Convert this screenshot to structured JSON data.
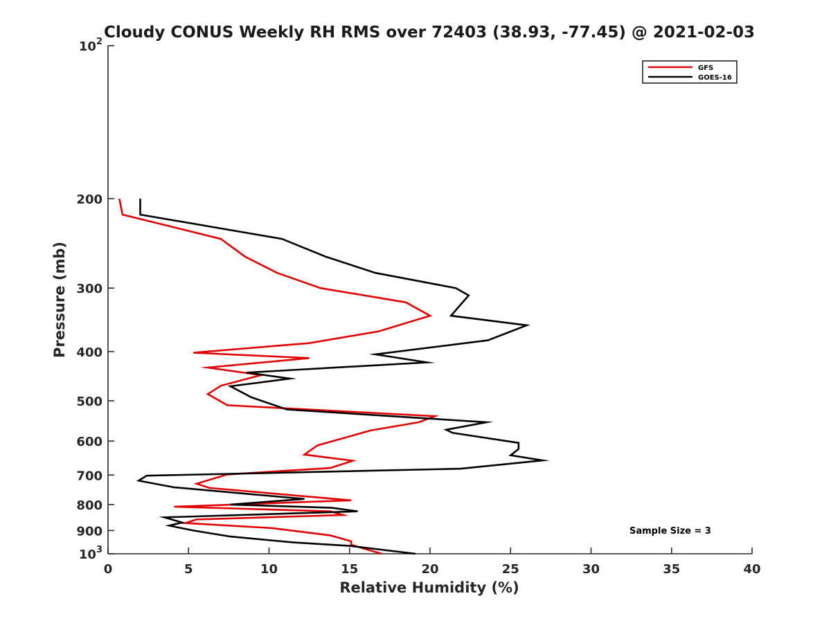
{
  "chart_data": {
    "type": "line",
    "title": "Cloudy CONUS Weekly RH RMS over 72403 (38.93, -77.45) @ 2021-02-03",
    "xlabel": "Relative Humidity (%)",
    "ylabel": "Pressure (mb)",
    "xlim": [
      0,
      40
    ],
    "ylim": [
      100,
      1000
    ],
    "y_scale": "log",
    "y_reversed": true,
    "x_ticks": [
      0,
      5,
      10,
      15,
      20,
      25,
      30,
      35,
      40
    ],
    "y_ticks": [
      {
        "value": 100,
        "base": "10",
        "exp": "2"
      },
      {
        "value": 200,
        "label": "200"
      },
      {
        "value": 300,
        "label": "300"
      },
      {
        "value": 400,
        "label": "400"
      },
      {
        "value": 500,
        "label": "500"
      },
      {
        "value": 600,
        "label": "600"
      },
      {
        "value": 700,
        "label": "700"
      },
      {
        "value": 800,
        "label": "800"
      },
      {
        "value": 900,
        "label": "900"
      },
      {
        "value": 1000,
        "base": "10",
        "exp": "3"
      }
    ],
    "legend_position": "top-right",
    "grid": false,
    "annotation": "Sample Size = 3",
    "series": [
      {
        "name": "GFS",
        "color": "#e00000",
        "points": [
          [
            0.7,
            200
          ],
          [
            0.9,
            215
          ],
          [
            7.0,
            240
          ],
          [
            8.5,
            260
          ],
          [
            10.5,
            280
          ],
          [
            13.2,
            300
          ],
          [
            18.5,
            320
          ],
          [
            20.0,
            340
          ],
          [
            16.8,
            365
          ],
          [
            12.5,
            385
          ],
          [
            5.3,
            402
          ],
          [
            12.5,
            412
          ],
          [
            6.2,
            430
          ],
          [
            9.5,
            445
          ],
          [
            7.0,
            467
          ],
          [
            6.2,
            485
          ],
          [
            7.4,
            510
          ],
          [
            20.3,
            536
          ],
          [
            19.3,
            551
          ],
          [
            16.3,
            572
          ],
          [
            13.0,
            612
          ],
          [
            12.2,
            638
          ],
          [
            15.2,
            656
          ],
          [
            13.8,
            678
          ],
          [
            7.4,
            698
          ],
          [
            5.5,
            728
          ],
          [
            6.3,
            742
          ],
          [
            15.1,
            785
          ],
          [
            4.1,
            808
          ],
          [
            13.8,
            825
          ],
          [
            14.6,
            839
          ],
          [
            5.5,
            856
          ],
          [
            4.8,
            870
          ],
          [
            10.2,
            890
          ],
          [
            13.8,
            920
          ],
          [
            15.1,
            945
          ],
          [
            15.1,
            960
          ],
          [
            15.8,
            975
          ],
          [
            17.0,
            1000
          ]
        ]
      },
      {
        "name": "GOES-16",
        "color": "#000000",
        "points": [
          [
            2.0,
            200
          ],
          [
            2.0,
            215
          ],
          [
            10.8,
            240
          ],
          [
            13.5,
            260
          ],
          [
            16.6,
            280
          ],
          [
            21.6,
            300
          ],
          [
            22.4,
            310
          ],
          [
            21.3,
            340
          ],
          [
            26.0,
            355
          ],
          [
            23.6,
            380
          ],
          [
            16.6,
            405
          ],
          [
            19.8,
            420
          ],
          [
            8.6,
            440
          ],
          [
            11.3,
            452
          ],
          [
            7.6,
            468
          ],
          [
            8.9,
            492
          ],
          [
            11.1,
            520
          ],
          [
            23.5,
            551
          ],
          [
            21.0,
            570
          ],
          [
            21.4,
            578
          ],
          [
            25.5,
            605
          ],
          [
            25.5,
            622
          ],
          [
            25.0,
            640
          ],
          [
            27.0,
            655
          ],
          [
            21.9,
            680
          ],
          [
            2.4,
            702
          ],
          [
            1.9,
            718
          ],
          [
            4.1,
            740
          ],
          [
            12.2,
            780
          ],
          [
            7.6,
            800
          ],
          [
            13.9,
            812
          ],
          [
            15.5,
            825
          ],
          [
            3.5,
            848
          ],
          [
            4.6,
            868
          ],
          [
            3.8,
            880
          ],
          [
            5.3,
            900
          ],
          [
            7.6,
            925
          ],
          [
            11.5,
            950
          ],
          [
            15.0,
            965
          ],
          [
            19.1,
            1000
          ]
        ]
      }
    ]
  }
}
